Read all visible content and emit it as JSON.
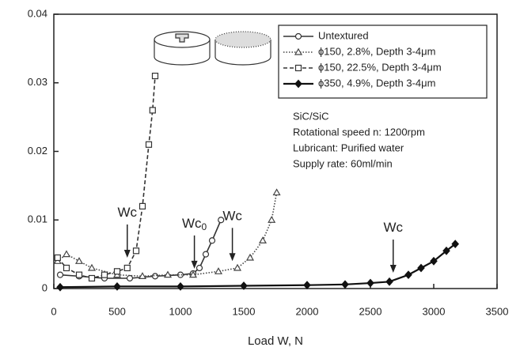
{
  "chart_data": {
    "type": "line",
    "xlabel": "Load W, N",
    "xlim": [
      0,
      3500
    ],
    "xticks": [
      0,
      500,
      1000,
      1500,
      2000,
      2500,
      3000,
      3500
    ],
    "ylim": [
      0,
      0.04
    ],
    "yticks": [
      0,
      0.01,
      0.02,
      0.03,
      0.04
    ],
    "grid": false,
    "legend": "upper right",
    "series": [
      {
        "name": "Untextured",
        "color": "#333333",
        "marker": "circle",
        "filled": false,
        "line_style": "solid",
        "x": [
          50,
          200,
          400,
          600,
          800,
          1000,
          1100,
          1150,
          1200,
          1250,
          1320
        ],
        "values": [
          0.002,
          0.0018,
          0.0015,
          0.0015,
          0.0018,
          0.002,
          0.0022,
          0.003,
          0.005,
          0.007,
          0.01
        ]
      },
      {
        "name": "ϕ150, 2.8%, Depth 3-4μm",
        "color": "#444444",
        "marker": "triangle",
        "filled": false,
        "line_style": "dotted",
        "x": [
          30,
          100,
          200,
          300,
          500,
          700,
          900,
          1100,
          1300,
          1450,
          1550,
          1650,
          1720,
          1760
        ],
        "values": [
          0.004,
          0.005,
          0.004,
          0.003,
          0.002,
          0.0018,
          0.002,
          0.002,
          0.0025,
          0.003,
          0.0045,
          0.007,
          0.01,
          0.014
        ]
      },
      {
        "name": "ϕ150, 22.5%, Depth 3-4μm",
        "color": "#333333",
        "marker": "square",
        "filled": false,
        "line_style": "dashed",
        "x": [
          30,
          100,
          200,
          300,
          400,
          500,
          580,
          650,
          700,
          750,
          780,
          800
        ],
        "values": [
          0.0045,
          0.003,
          0.002,
          0.0015,
          0.002,
          0.0025,
          0.003,
          0.0055,
          0.012,
          0.021,
          0.026,
          0.031
        ]
      },
      {
        "name": "ϕ350, 4.9%, Depth 3-4μm",
        "color": "#111111",
        "marker": "diamond",
        "filled": true,
        "line_style": "solid",
        "x": [
          50,
          500,
          1000,
          1500,
          2000,
          2300,
          2500,
          2650,
          2800,
          2900,
          3000,
          3100,
          3170
        ],
        "values": [
          0.0002,
          0.0003,
          0.0003,
          0.0004,
          0.0005,
          0.0006,
          0.0008,
          0.001,
          0.002,
          0.003,
          0.004,
          0.0055,
          0.0065
        ]
      }
    ],
    "annotations": [
      {
        "text": "Wc",
        "x": 580,
        "y": 0.0045
      },
      {
        "text": "Wc",
        "sub": "0",
        "x": 1110,
        "y": 0.0029
      },
      {
        "text": "Wc",
        "x": 1410,
        "y": 0.004
      },
      {
        "text": "Wc",
        "x": 2680,
        "y": 0.0023
      }
    ],
    "notes": [
      "SiC/SiC",
      "Rotational speed n: 1200rpm",
      "Lubricant: Purified water",
      "Supply rate: 60ml/min"
    ]
  }
}
